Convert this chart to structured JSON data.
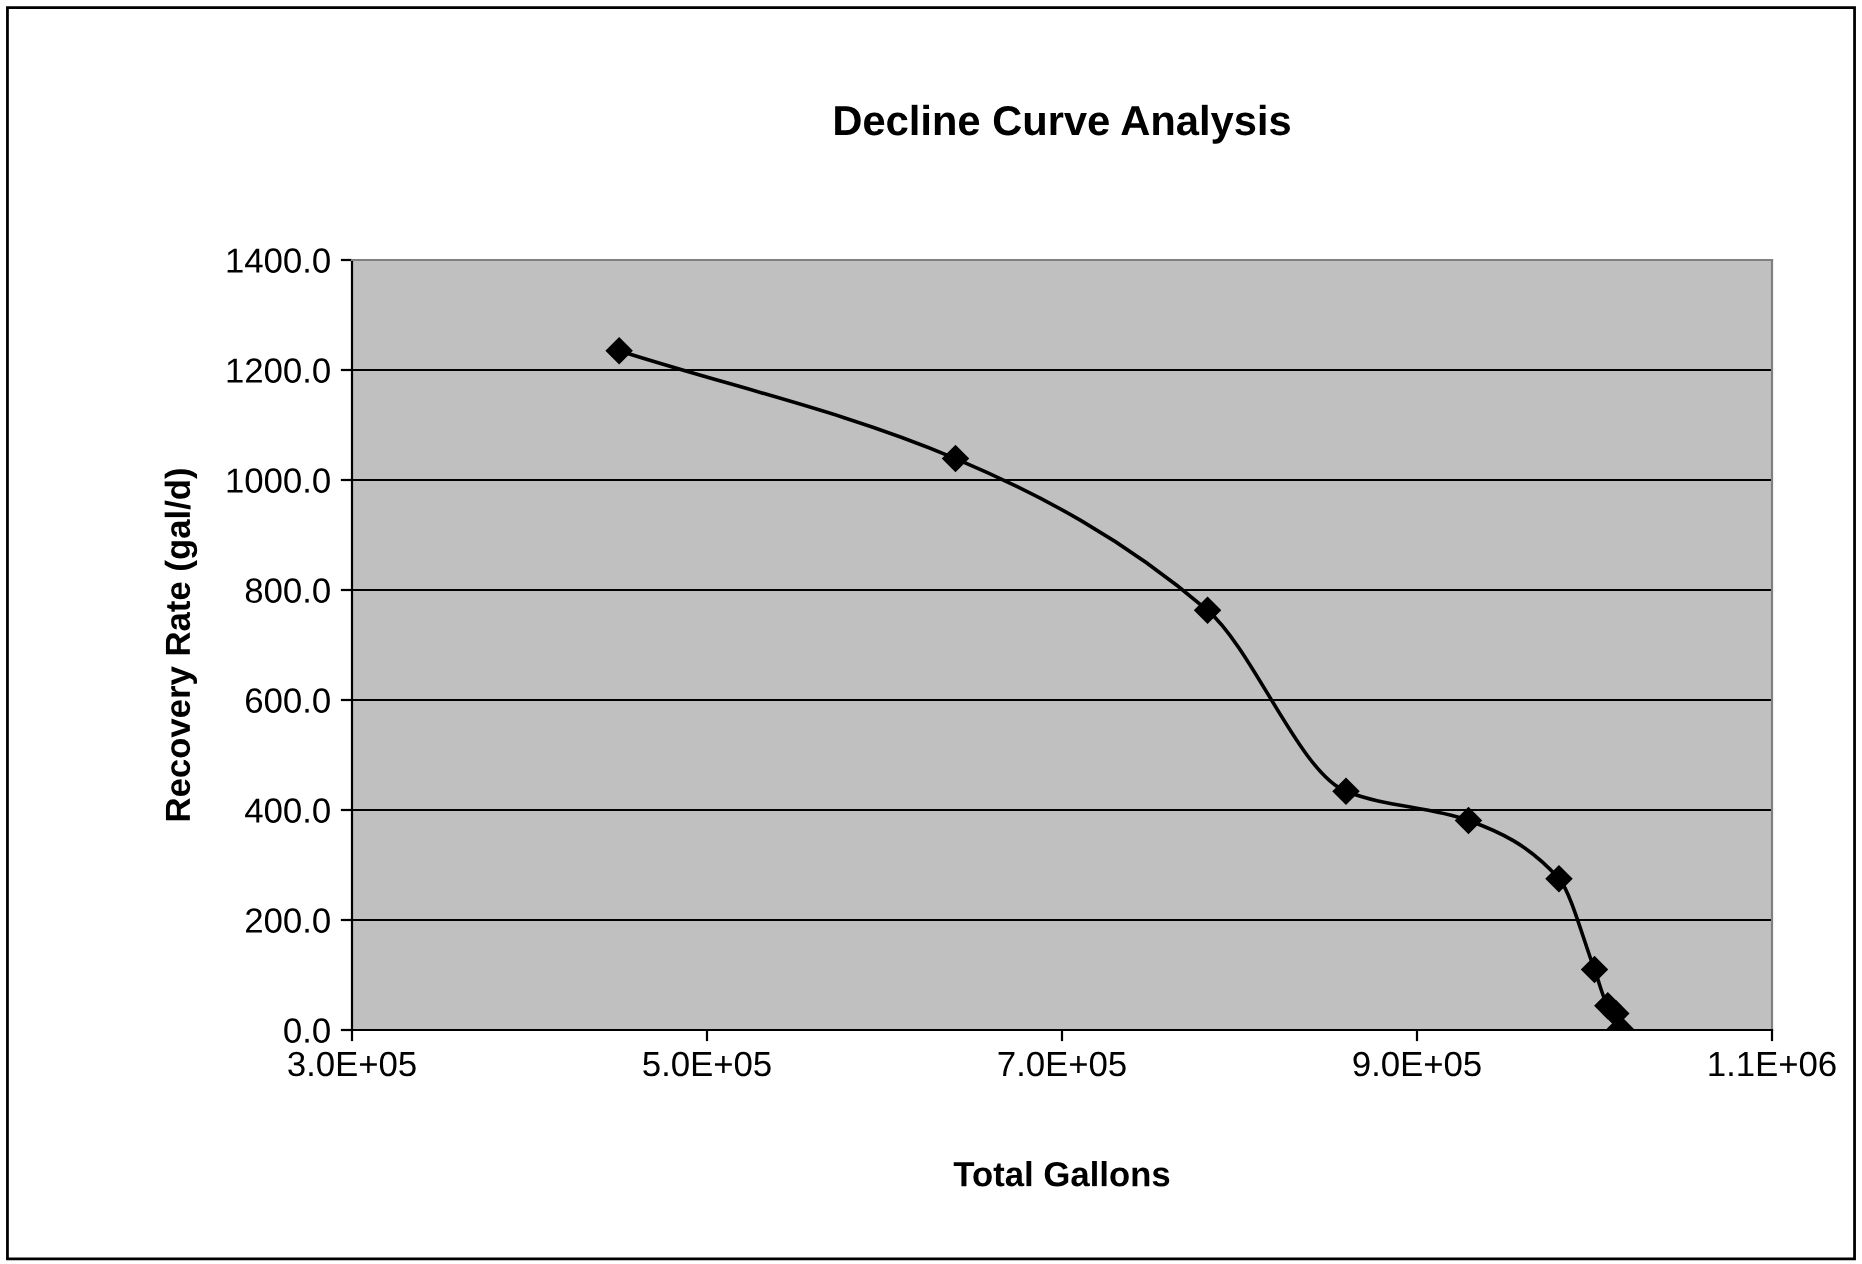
{
  "chart_data": {
    "type": "line",
    "title": "Decline Curve Analysis",
    "xlabel": "Total Gallons",
    "ylabel": "Recovery Rate (gal/d)",
    "x": [
      450500,
      640000,
      782000,
      860000,
      929000,
      980000,
      1000000,
      1007500,
      1012000,
      1014500
    ],
    "series": [
      {
        "color": "#000000",
        "values": [
          1235,
          1039,
          763,
          434,
          381,
          275,
          110,
          44,
          30,
          2
        ]
      }
    ],
    "xlim": [
      300000,
      1100000
    ],
    "xticks": [
      {
        "value": 300000,
        "label": "3.0E+05"
      },
      {
        "value": 500000,
        "label": "5.0E+05"
      },
      {
        "value": 700000,
        "label": "7.0E+05"
      },
      {
        "value": 900000,
        "label": "9.0E+05"
      },
      {
        "value": 1100000,
        "label": "1.1E+06"
      }
    ],
    "ylim": [
      0,
      1400
    ],
    "yticks": [
      {
        "value": 0,
        "label": "0.0"
      },
      {
        "value": 200,
        "label": "200.0"
      },
      {
        "value": 400,
        "label": "400.0"
      },
      {
        "value": 600,
        "label": "600.0"
      },
      {
        "value": 800,
        "label": "800.0"
      },
      {
        "value": 1000,
        "label": "1000.0"
      },
      {
        "value": 1200,
        "label": "1200.0"
      },
      {
        "value": 1400,
        "label": "1400.0"
      }
    ],
    "grid": "y",
    "marker": "diamond",
    "line_style": "solid",
    "legend": false
  }
}
